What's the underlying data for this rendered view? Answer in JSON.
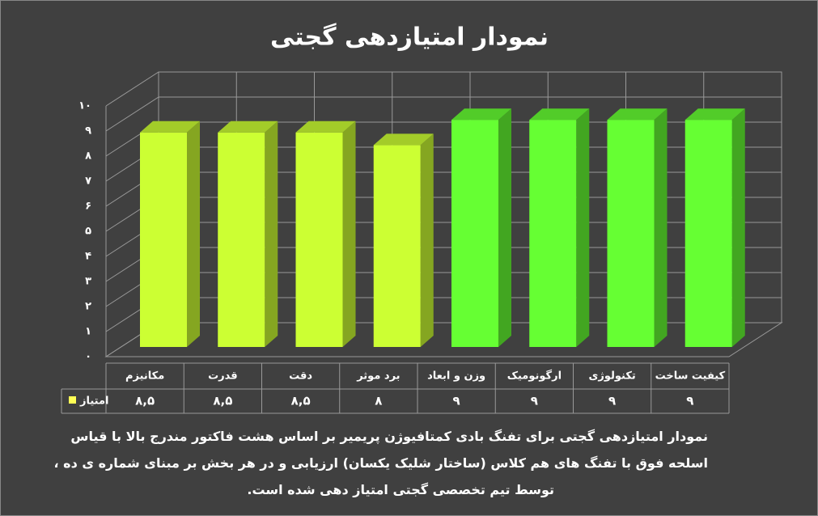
{
  "chart_data": {
    "type": "bar3d",
    "title": "نمودار امتیازدهی گجتی",
    "categories": [
      "مکانیزم",
      "قدرت",
      "دقت",
      "برد موثر",
      "وزن و ابعاد",
      "ارگونومیک",
      "تکنولوژی",
      "کیفیت ساخت"
    ],
    "series": [
      {
        "name": "امتیاز",
        "color": "#ffff55",
        "colors": [
          "#ccff33",
          "#ccff33",
          "#ccff33",
          "#ccff33",
          "#66ff33",
          "#66ff33",
          "#66ff33",
          "#66ff33"
        ],
        "values": [
          8.5,
          8.5,
          8.5,
          8,
          9,
          9,
          9,
          9
        ],
        "value_labels": [
          "۸,۵",
          "۸,۵",
          "۸,۵",
          "۸",
          "۹",
          "۹",
          "۹",
          "۹"
        ]
      }
    ],
    "ylim": [
      0,
      10
    ],
    "yticks": [
      {
        "value": 0,
        "label": "۰"
      },
      {
        "value": 1,
        "label": "۱"
      },
      {
        "value": 2,
        "label": "۲"
      },
      {
        "value": 3,
        "label": "۳"
      },
      {
        "value": 4,
        "label": "۴"
      },
      {
        "value": 5,
        "label": "۵"
      },
      {
        "value": 6,
        "label": "۶"
      },
      {
        "value": 7,
        "label": "۷"
      },
      {
        "value": 8,
        "label": "۸"
      },
      {
        "value": 9,
        "label": "۹"
      },
      {
        "value": 10,
        "label": "۱۰"
      }
    ],
    "grid": true,
    "notes": [
      "نمودار امتیازدهی گجتی برای تفنگ بادی کمتافیوژن پریمیر بر اساس هشت فاکتور مندرج بالا با قیاس",
      "اسلحه فوق با تفنگ های هم کلاس (ساختار شلیک یکسان) ارزیابی و در هر بخش بر مبنای شماره ی ده ،",
      "توسط تیم تخصصی گجتی امتیاز دهی شده است."
    ]
  }
}
